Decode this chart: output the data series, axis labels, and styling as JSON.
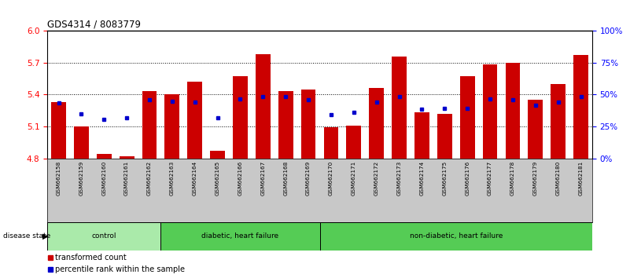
{
  "title": "GDS4314 / 8083779",
  "samples": [
    "GSM662158",
    "GSM662159",
    "GSM662160",
    "GSM662161",
    "GSM662162",
    "GSM662163",
    "GSM662164",
    "GSM662165",
    "GSM662166",
    "GSM662167",
    "GSM662168",
    "GSM662169",
    "GSM662170",
    "GSM662171",
    "GSM662172",
    "GSM662173",
    "GSM662174",
    "GSM662175",
    "GSM662176",
    "GSM662177",
    "GSM662178",
    "GSM662179",
    "GSM662180",
    "GSM662181"
  ],
  "red_values": [
    5.33,
    5.1,
    4.84,
    4.82,
    5.43,
    5.4,
    5.52,
    4.87,
    5.57,
    5.78,
    5.43,
    5.45,
    5.09,
    5.11,
    5.46,
    5.76,
    5.23,
    5.22,
    5.57,
    5.68,
    5.7,
    5.35,
    5.5,
    5.77
  ],
  "blue_values": [
    5.32,
    5.22,
    5.17,
    5.18,
    5.35,
    5.34,
    5.33,
    5.18,
    5.36,
    5.38,
    5.38,
    5.35,
    5.21,
    5.23,
    5.33,
    5.38,
    5.26,
    5.27,
    5.27,
    5.36,
    5.35,
    5.3,
    5.33,
    5.38
  ],
  "group_specs": [
    {
      "label": "control",
      "start": 0,
      "end": 4,
      "color": "#AAEAAA"
    },
    {
      "label": "diabetic, heart failure",
      "start": 5,
      "end": 11,
      "color": "#55CC55"
    },
    {
      "label": "non-diabetic, heart failure",
      "start": 12,
      "end": 23,
      "color": "#55CC55"
    }
  ],
  "ylim_left": [
    4.8,
    6.0
  ],
  "ylim_right": [
    0,
    100
  ],
  "yticks_left": [
    4.8,
    5.1,
    5.4,
    5.7,
    6.0
  ],
  "yticks_right": [
    0,
    25,
    50,
    75,
    100
  ],
  "bar_color": "#CC0000",
  "blue_color": "#0000CC",
  "label_bg_color": "#C8C8C8",
  "grid_lines": [
    5.1,
    5.4,
    5.7
  ]
}
